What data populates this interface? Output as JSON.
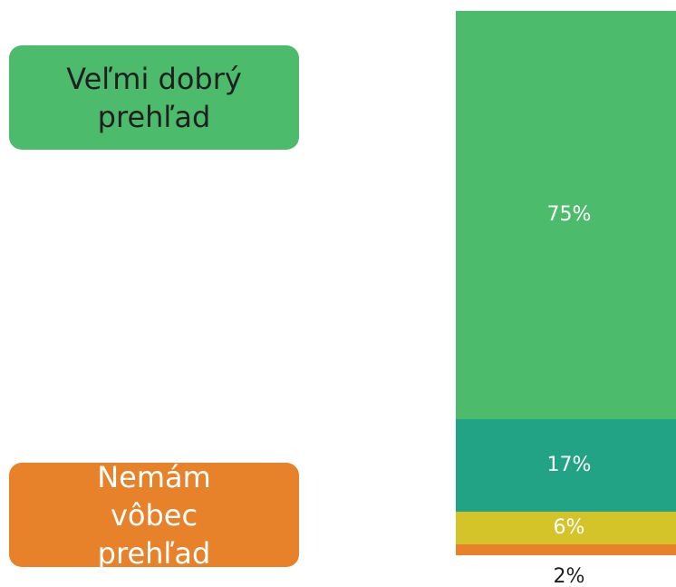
{
  "chart_data": {
    "type": "bar",
    "stacked": true,
    "ylim": [
      0,
      100
    ],
    "series": [
      {
        "color": "#4dbb6c",
        "values": [
          2
        ],
        "value_labels": [
          "2%"
        ]
      },
      {
        "color": "#d4c42a",
        "values": [
          6
        ],
        "value_labels": [
          "6%"
        ]
      },
      {
        "color": "#22a386",
        "values": [
          17
        ],
        "value_labels": [
          "17%"
        ]
      },
      {
        "color": "#4dbb6c",
        "values": [
          75
        ],
        "value_labels": [
          "75%"
        ]
      }
    ],
    "annotations": [
      {
        "text": "Veľmi dobrý prehľad",
        "color": "#4dbb6c",
        "text_color": "#1f1f1f"
      },
      {
        "text": "Nemám vôbec prehľad",
        "color": "#e8822a",
        "text_color": "#ffffff"
      }
    ]
  }
}
